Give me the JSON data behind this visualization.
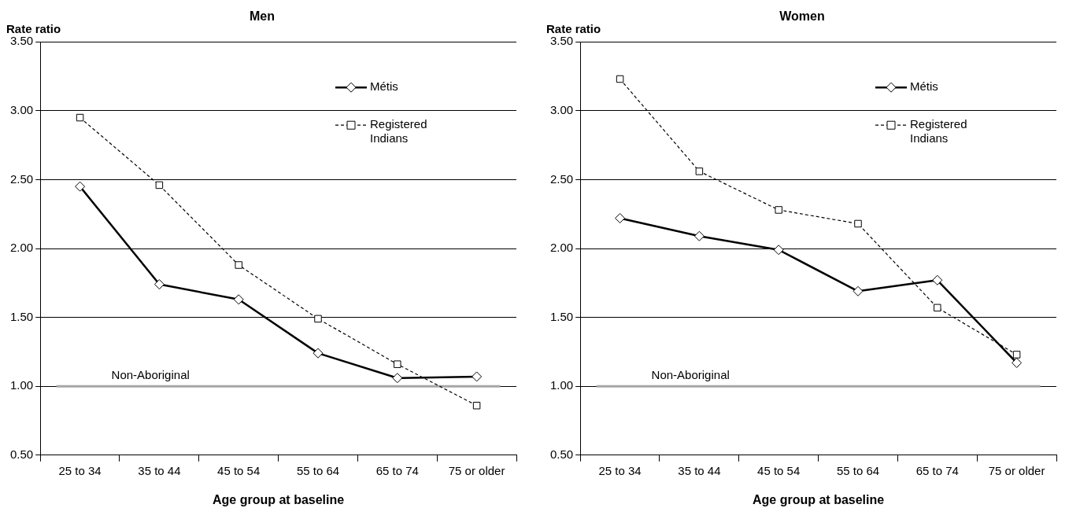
{
  "chart_data": [
    {
      "type": "line",
      "title": "Men",
      "ylabel": "Rate ratio",
      "xlabel": "Age group at baseline",
      "categories": [
        "25 to 34",
        "35 to 44",
        "45 to 54",
        "55 to 64",
        "65 to 74",
        "75 or older"
      ],
      "series": [
        {
          "name": "Métis",
          "color": "#000000",
          "marker": "diamond",
          "line_style": "solid",
          "values": [
            2.45,
            1.74,
            1.63,
            1.24,
            1.06,
            1.07
          ]
        },
        {
          "name": "Registered Indians",
          "color": "#000000",
          "marker": "square",
          "line_style": "dashed",
          "values": [
            2.95,
            2.46,
            1.88,
            1.49,
            1.16,
            0.86
          ]
        }
      ],
      "ylim": [
        0.5,
        3.5
      ],
      "yticks": [
        {
          "value": 0.5,
          "label": "0.50"
        },
        {
          "value": 1,
          "label": "1.00"
        },
        {
          "value": 1.5,
          "label": "1.50"
        },
        {
          "value": 2,
          "label": "2.00"
        },
        {
          "value": 2.5,
          "label": "2.50"
        },
        {
          "value": 3,
          "label": "3.00"
        },
        {
          "value": 3.5,
          "label": "3.50"
        }
      ],
      "ref_lines": [
        {
          "axis": "y",
          "value": 1,
          "label": "Non-Aboriginal",
          "color": "#a6a6a6"
        }
      ],
      "grid": "y",
      "legend": "top right"
    },
    {
      "type": "line",
      "title": "Women",
      "ylabel": "Rate ratio",
      "xlabel": "Age group at baseline",
      "categories": [
        "25 to 34",
        "35 to 44",
        "45 to 54",
        "55 to 64",
        "65 to 74",
        "75 or older"
      ],
      "series": [
        {
          "name": "Métis",
          "color": "#000000",
          "marker": "diamond",
          "line_style": "solid",
          "values": [
            2.22,
            2.09,
            1.99,
            1.69,
            1.77,
            1.17
          ]
        },
        {
          "name": "Registered Indians",
          "color": "#000000",
          "marker": "square",
          "line_style": "dashed",
          "values": [
            3.23,
            2.56,
            2.28,
            2.18,
            1.57,
            1.23
          ]
        }
      ],
      "ylim": [
        0.5,
        3.5
      ],
      "yticks": [
        {
          "value": 0.5,
          "label": "0.50"
        },
        {
          "value": 1,
          "label": "1.00"
        },
        {
          "value": 1.5,
          "label": "1.50"
        },
        {
          "value": 2,
          "label": "2.00"
        },
        {
          "value": 2.5,
          "label": "2.50"
        },
        {
          "value": 3,
          "label": "3.00"
        },
        {
          "value": 3.5,
          "label": "3.50"
        }
      ],
      "ref_lines": [
        {
          "axis": "y",
          "value": 1,
          "label": "Non-Aboriginal",
          "color": "#a6a6a6"
        }
      ],
      "grid": "y",
      "legend": "top right"
    }
  ]
}
